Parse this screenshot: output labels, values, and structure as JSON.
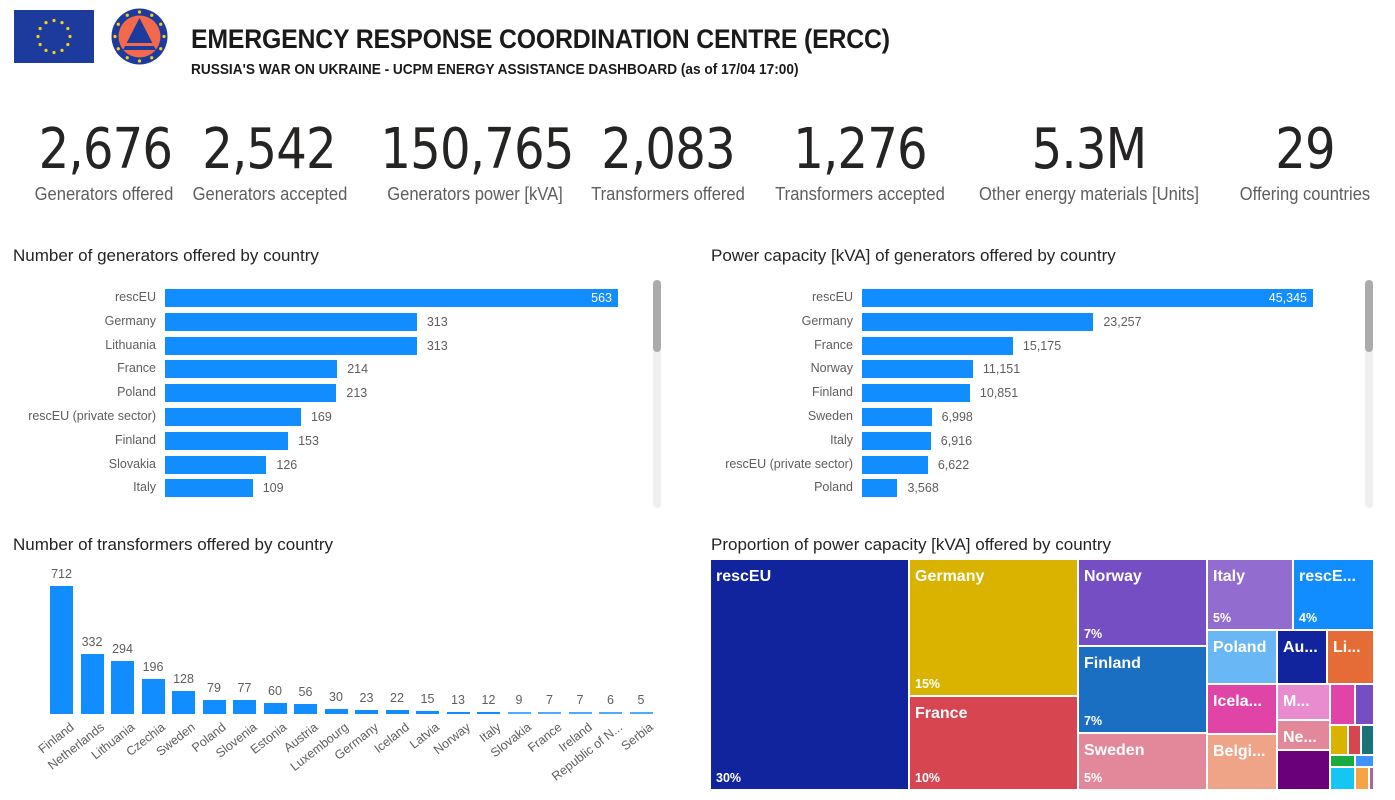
{
  "header": {
    "title": "EMERGENCY RESPONSE COORDINATION CENTRE (ERCC)",
    "subtitle": "RUSSIA'S WAR ON UKRAINE - UCPM ENERGY ASSISTANCE DASHBOARD (as of 17/04 17:00)",
    "logos": [
      "eu-flag-icon",
      "ucpm-civil-protection-icon"
    ],
    "colors": {
      "eu_blue": "#1d3b9c",
      "eu_star": "#f7d117",
      "ucpm_orange": "#f26a4b"
    }
  },
  "kpis": [
    {
      "value": "2,676",
      "label": "Generators offered"
    },
    {
      "value": "2,542",
      "label": "Generators accepted"
    },
    {
      "value": "150,765",
      "label": "Generators power [kVA]"
    },
    {
      "value": "2,083",
      "label": "Transformers offered"
    },
    {
      "value": "1,276",
      "label": "Transformers accepted"
    },
    {
      "value": "5.3M",
      "label": "Other energy materials [Units]"
    },
    {
      "value": "29",
      "label": "Offering countries"
    }
  ],
  "colors": {
    "bar": "#118dff",
    "label": "#605e5c",
    "title": "#252423"
  },
  "chart_data": [
    {
      "id": "generators",
      "type": "bar",
      "orientation": "horizontal",
      "title": "Number of generators offered by country",
      "categories": [
        "rescEU",
        "Germany",
        "Lithuania",
        "France",
        "Poland",
        "rescEU (private sector)",
        "Finland",
        "Slovakia",
        "Italy"
      ],
      "values": [
        563,
        313,
        313,
        214,
        213,
        169,
        153,
        126,
        109
      ],
      "value_labels": [
        "563",
        "313",
        "313",
        "214",
        "213",
        "169",
        "153",
        "126",
        "109"
      ],
      "xlim": [
        0,
        563
      ],
      "scrollable": true
    },
    {
      "id": "power",
      "type": "bar",
      "orientation": "horizontal",
      "title": "Power capacity [kVA] of generators offered by country",
      "categories": [
        "rescEU",
        "Germany",
        "France",
        "Norway",
        "Finland",
        "Sweden",
        "Italy",
        "rescEU (private sector)",
        "Poland"
      ],
      "values": [
        45345,
        23257,
        15175,
        11151,
        10851,
        6998,
        6916,
        6622,
        3568
      ],
      "value_labels": [
        "45,345",
        "23,257",
        "15,175",
        "11,151",
        "10,851",
        "6,998",
        "6,916",
        "6,622",
        "3,568"
      ],
      "xlim": [
        0,
        45345
      ],
      "scrollable": true
    },
    {
      "id": "transformers",
      "type": "bar",
      "orientation": "vertical",
      "title": "Number of transformers offered by country",
      "categories": [
        "Finland",
        "Netherlands",
        "Lithuania",
        "Czechia",
        "Sweden",
        "Poland",
        "Slovenia",
        "Estonia",
        "Austria",
        "Luxembourg",
        "Germany",
        "Iceland",
        "Latvia",
        "Norway",
        "Italy",
        "Slovakia",
        "France",
        "Ireland",
        "Republic of N...",
        "Serbia"
      ],
      "values": [
        712,
        332,
        294,
        196,
        128,
        79,
        77,
        60,
        56,
        30,
        23,
        22,
        15,
        13,
        12,
        9,
        7,
        7,
        6,
        5
      ],
      "ylim": [
        0,
        712
      ]
    },
    {
      "id": "treemap",
      "type": "treemap",
      "title": "Proportion of power capacity [kVA] offered by country",
      "items": [
        {
          "name": "rescEU",
          "label": "rescEU",
          "pct": "30%",
          "color": "#12239e"
        },
        {
          "name": "Germany",
          "label": "Germany",
          "pct": "15%",
          "color": "#d9b300"
        },
        {
          "name": "France",
          "label": "France",
          "pct": "10%",
          "color": "#d64550"
        },
        {
          "name": "Norway",
          "label": "Norway",
          "pct": "7%",
          "color": "#744ec2"
        },
        {
          "name": "Finland",
          "label": "Finland",
          "pct": "7%",
          "color": "#1a6fc2"
        },
        {
          "name": "Sweden",
          "label": "Sweden",
          "pct": "5%",
          "color": "#e3889a"
        },
        {
          "name": "Italy",
          "label": "Italy",
          "pct": "5%",
          "color": "#936ccf"
        },
        {
          "name": "rescEU (private sector)",
          "label": "rescE...",
          "pct": "4%",
          "color": "#118dff"
        },
        {
          "name": "Poland",
          "label": "Poland",
          "pct": "",
          "color": "#6ab7f5"
        },
        {
          "name": "Austria",
          "label": "Au...",
          "pct": "",
          "color": "#12239e"
        },
        {
          "name": "Lithuania",
          "label": "Li...",
          "pct": "",
          "color": "#e66c37"
        },
        {
          "name": "Iceland",
          "label": "Icela...",
          "pct": "",
          "color": "#e044a7"
        },
        {
          "name": "M...",
          "label": "M...",
          "pct": "",
          "color": "#e88bcf"
        },
        {
          "name": "Ne...",
          "label": "Ne...",
          "pct": "",
          "color": "#e3889a"
        },
        {
          "name": "Belgium",
          "label": "Belgi...",
          "pct": "",
          "color": "#f0a487"
        },
        {
          "name": "other-1",
          "label": "",
          "pct": "",
          "color": "#6b007b"
        },
        {
          "name": "other-2",
          "label": "",
          "pct": "",
          "color": "#e044a7"
        },
        {
          "name": "other-3",
          "label": "",
          "pct": "",
          "color": "#744ec2"
        },
        {
          "name": "other-4",
          "label": "",
          "pct": "",
          "color": "#d9b300"
        },
        {
          "name": "other-5",
          "label": "",
          "pct": "",
          "color": "#d64550"
        },
        {
          "name": "other-6",
          "label": "",
          "pct": "",
          "color": "#197278"
        },
        {
          "name": "other-7",
          "label": "",
          "pct": "",
          "color": "#1aab40"
        },
        {
          "name": "other-8",
          "label": "",
          "pct": "",
          "color": "#4092ff"
        },
        {
          "name": "other-9",
          "label": "",
          "pct": "",
          "color": "#15c6f4"
        },
        {
          "name": "other-10",
          "label": "",
          "pct": "",
          "color": "#f5a344"
        },
        {
          "name": "other-11",
          "label": "",
          "pct": "",
          "color": "#a66999"
        }
      ]
    }
  ]
}
